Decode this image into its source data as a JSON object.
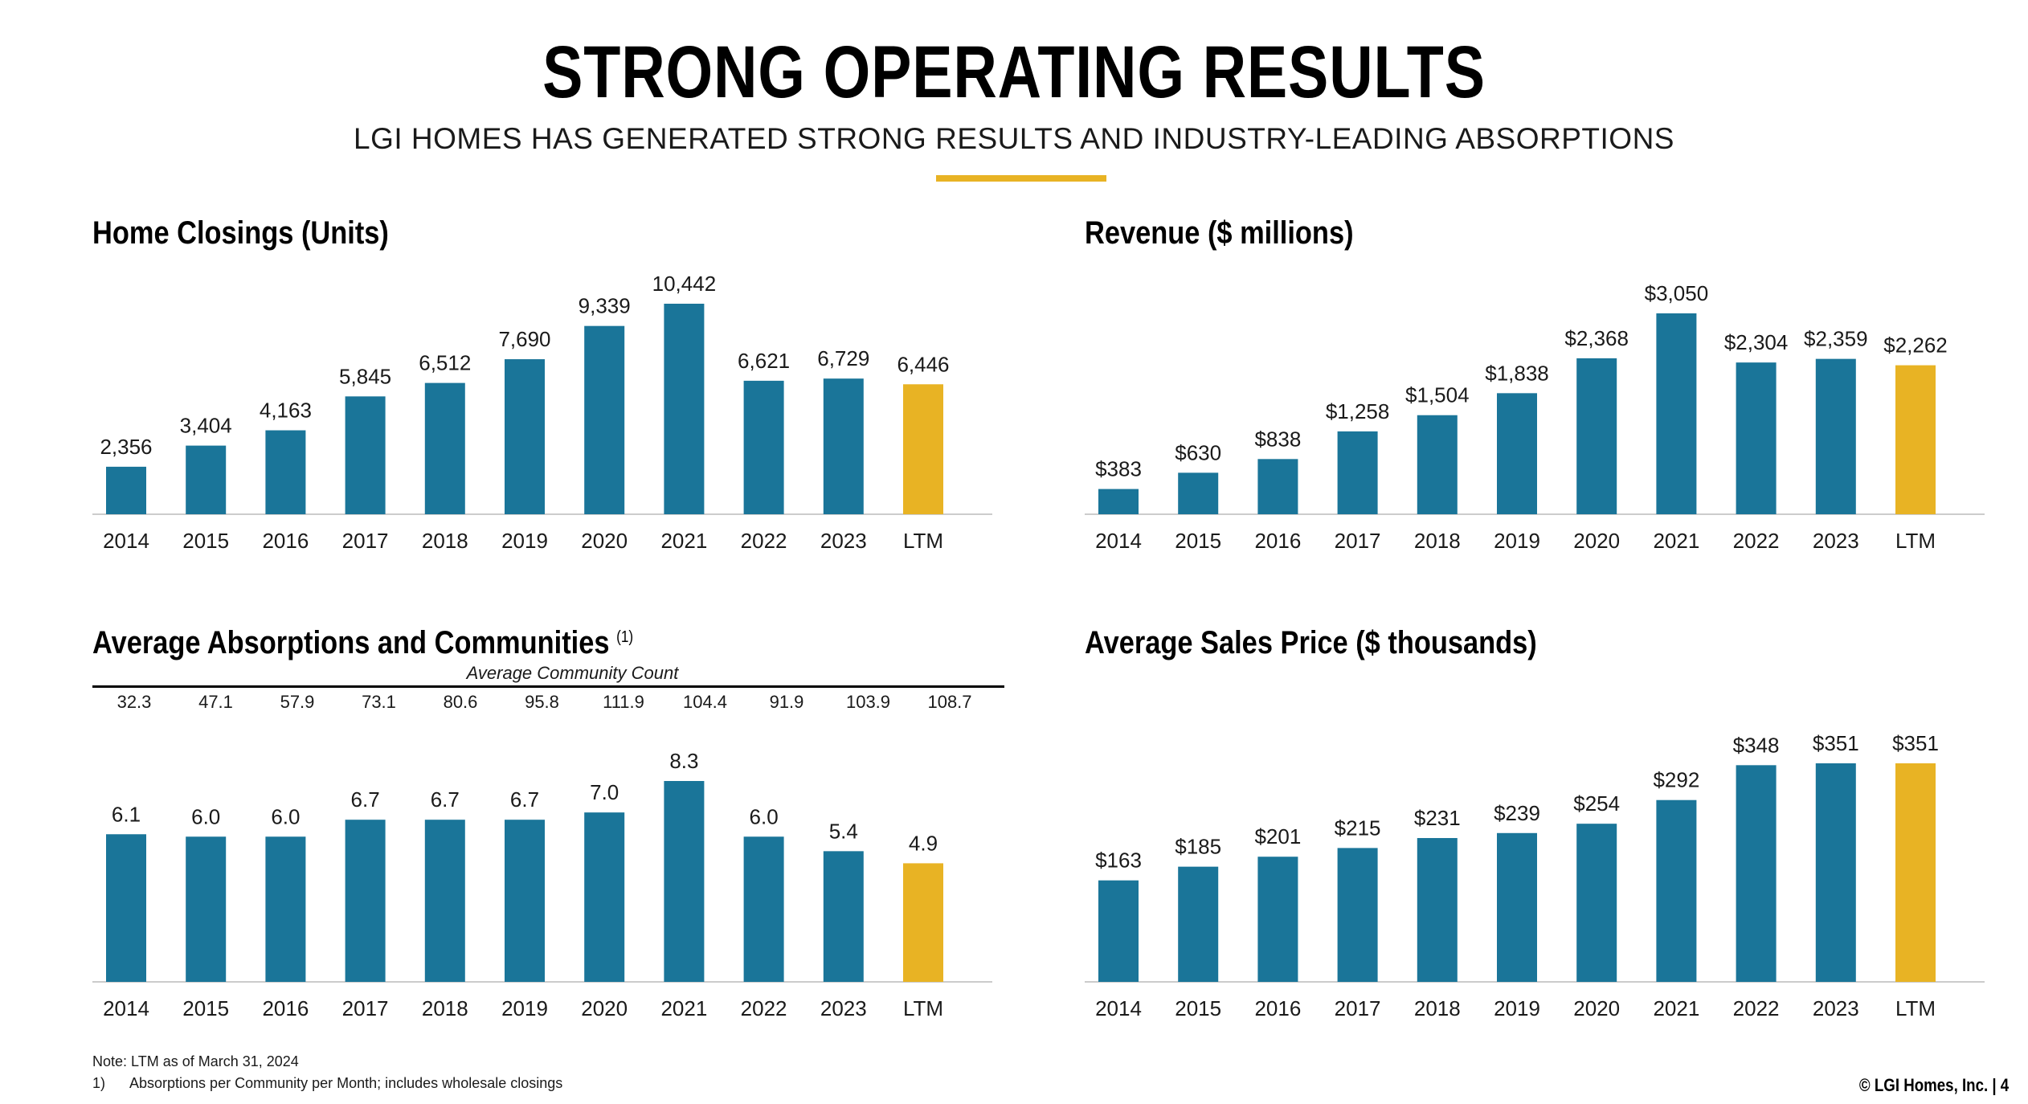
{
  "header": {
    "title": "STRONG OPERATING RESULTS",
    "subtitle": "LGI HOMES HAS GENERATED STRONG RESULTS AND INDUSTRY-LEADING ABSORPTIONS"
  },
  "colors": {
    "bar": "#1a7599",
    "highlight": "#e8b324",
    "axis": "#cccccc",
    "accent_rule": "#e8b324"
  },
  "community": {
    "label": "Average Community Count",
    "values": [
      "32.3",
      "47.1",
      "57.9",
      "73.1",
      "80.6",
      "95.8",
      "111.9",
      "104.4",
      "91.9",
      "103.9",
      "108.7"
    ]
  },
  "chart_data": [
    {
      "id": "closings",
      "type": "bar",
      "title": "Home Closings (Units)",
      "categories": [
        "2014",
        "2015",
        "2016",
        "2017",
        "2018",
        "2019",
        "2020",
        "2021",
        "2022",
        "2023",
        "LTM"
      ],
      "values": [
        2356,
        3404,
        4163,
        5845,
        6512,
        7690,
        9339,
        10442,
        6621,
        6729,
        6446
      ],
      "labels": [
        "2,356",
        "3,404",
        "4,163",
        "5,845",
        "6,512",
        "7,690",
        "9,339",
        "10,442",
        "6,621",
        "6,729",
        "6,446"
      ],
      "highlight": "LTM",
      "ylim": [
        0,
        10442
      ]
    },
    {
      "id": "revenue",
      "type": "bar",
      "title": "Revenue ($ millions)",
      "categories": [
        "2014",
        "2015",
        "2016",
        "2017",
        "2018",
        "2019",
        "2020",
        "2021",
        "2022",
        "2023",
        "LTM"
      ],
      "values": [
        383,
        630,
        838,
        1258,
        1504,
        1838,
        2368,
        3050,
        2304,
        2359,
        2262
      ],
      "labels": [
        "$383",
        "$630",
        "$838",
        "$1,258",
        "$1,504",
        "$1,838",
        "$2,368",
        "$3,050",
        "$2,304",
        "$2,359",
        "$2,262"
      ],
      "highlight": "LTM",
      "ylim": [
        0,
        3050
      ]
    },
    {
      "id": "absorptions",
      "type": "bar",
      "title": "Average Absorptions and Communities",
      "title_sup": "(1)",
      "categories": [
        "2014",
        "2015",
        "2016",
        "2017",
        "2018",
        "2019",
        "2020",
        "2021",
        "2022",
        "2023",
        "LTM"
      ],
      "values": [
        6.1,
        6.0,
        6.0,
        6.7,
        6.7,
        6.7,
        7.0,
        8.3,
        6.0,
        5.4,
        4.9
      ],
      "labels": [
        "6.1",
        "6.0",
        "6.0",
        "6.7",
        "6.7",
        "6.7",
        "7.0",
        "8.3",
        "6.0",
        "5.4",
        "4.9"
      ],
      "highlight": "LTM",
      "ylim": [
        0,
        8.3
      ]
    },
    {
      "id": "price",
      "type": "bar",
      "title": "Average Sales Price ($ thousands)",
      "categories": [
        "2014",
        "2015",
        "2016",
        "2017",
        "2018",
        "2019",
        "2020",
        "2021",
        "2022",
        "2023",
        "LTM"
      ],
      "values": [
        163,
        185,
        201,
        215,
        231,
        239,
        254,
        292,
        348,
        351,
        351
      ],
      "labels": [
        "$163",
        "$185",
        "$201",
        "$215",
        "$231",
        "$239",
        "$254",
        "$292",
        "$348",
        "$351",
        "$351"
      ],
      "highlight": "LTM",
      "ylim": [
        0,
        351
      ]
    }
  ],
  "notes": {
    "note": "Note: LTM as of March 31, 2024",
    "footnote_num": "1)",
    "footnote_text": "Absorptions per Community per Month; includes wholesale closings"
  },
  "footer": {
    "text": "© LGI Homes, Inc. | 4"
  }
}
